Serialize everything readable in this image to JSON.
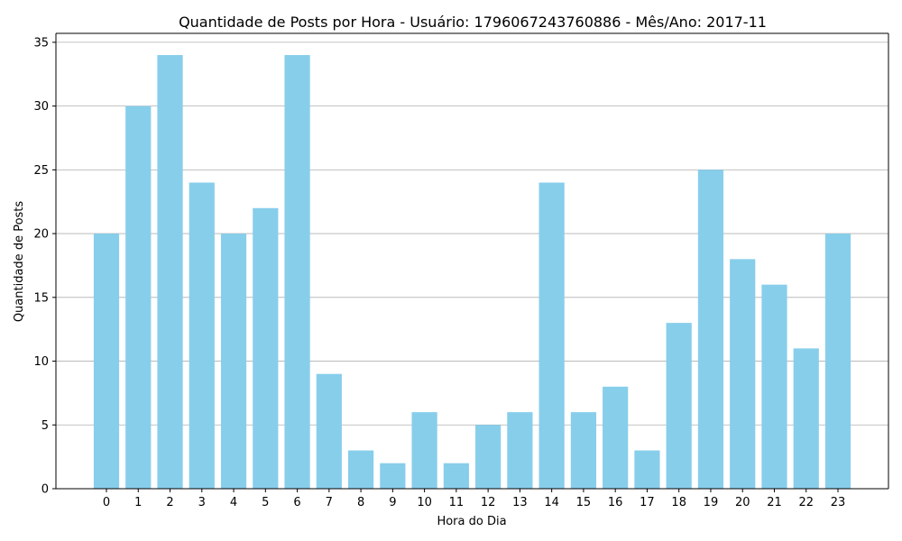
{
  "chart_data": {
    "type": "bar",
    "title": "Quantidade de Posts por Hora - Usuário: 1796067243760886 - Mês/Ano: 2017-11",
    "xlabel": "Hora do Dia",
    "ylabel": "Quantidade de Posts",
    "categories": [
      "0",
      "1",
      "2",
      "3",
      "4",
      "5",
      "6",
      "7",
      "8",
      "9",
      "10",
      "11",
      "12",
      "13",
      "14",
      "15",
      "16",
      "17",
      "18",
      "19",
      "20",
      "21",
      "22",
      "23"
    ],
    "values": [
      20,
      30,
      34,
      24,
      20,
      22,
      34,
      9,
      3,
      2,
      6,
      2,
      5,
      6,
      24,
      6,
      8,
      3,
      13,
      25,
      18,
      16,
      11,
      20
    ],
    "ylim": [
      0,
      35.7
    ],
    "yticks": [
      0,
      5,
      10,
      15,
      20,
      25,
      30,
      35
    ],
    "grid": "y",
    "bar_color": "#87CEEB"
  }
}
